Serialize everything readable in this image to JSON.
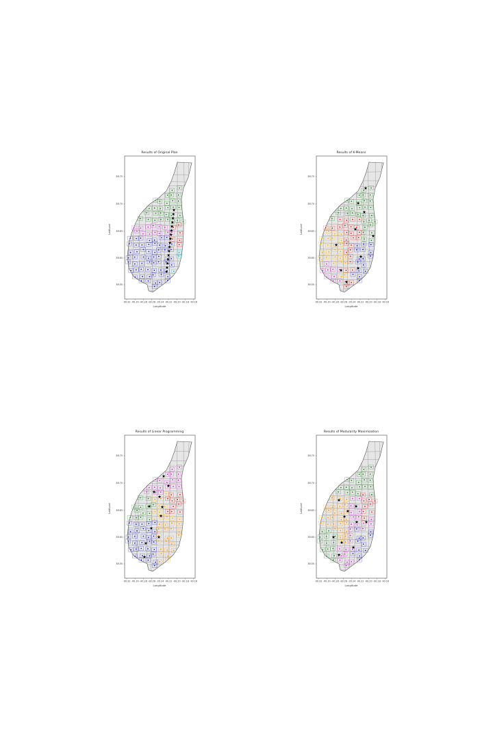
{
  "figure": {
    "panels": [
      {
        "title": "Results of Original Plan",
        "xlabel": "Longitude",
        "ylabel": "Latitude",
        "scheme": "original"
      },
      {
        "title": "Results of K-Means",
        "xlabel": "Longitude",
        "ylabel": "Latitude",
        "scheme": "kmeans"
      },
      {
        "title": "Results of Linear Programming",
        "xlabel": "Longitude",
        "ylabel": "Latitude",
        "scheme": "linprog"
      },
      {
        "title": "Results of Modularity Maximization",
        "xlabel": "Longitude",
        "ylabel": "Latitude",
        "scheme": "modularity"
      }
    ],
    "x_ticks": [
      "-90.32",
      "-90.30",
      "-90.28",
      "-90.26",
      "-90.24",
      "-90.22",
      "-90.20",
      "-90.18",
      "-90.16"
    ],
    "y_ticks": [
      "38.75",
      "38.70",
      "38.65",
      "38.60",
      "38.55"
    ],
    "colors": {
      "map_fill": "#e6e6e6",
      "map_edge": "#555555",
      "frame": "#444444",
      "clusters": [
        "#2222cc",
        "#228b22",
        "#dd2222",
        "#cc33cc",
        "#ffb000",
        "#00d0e0",
        "#ff9900",
        "#000000"
      ]
    },
    "legend": "none",
    "marker_center": "star"
  }
}
